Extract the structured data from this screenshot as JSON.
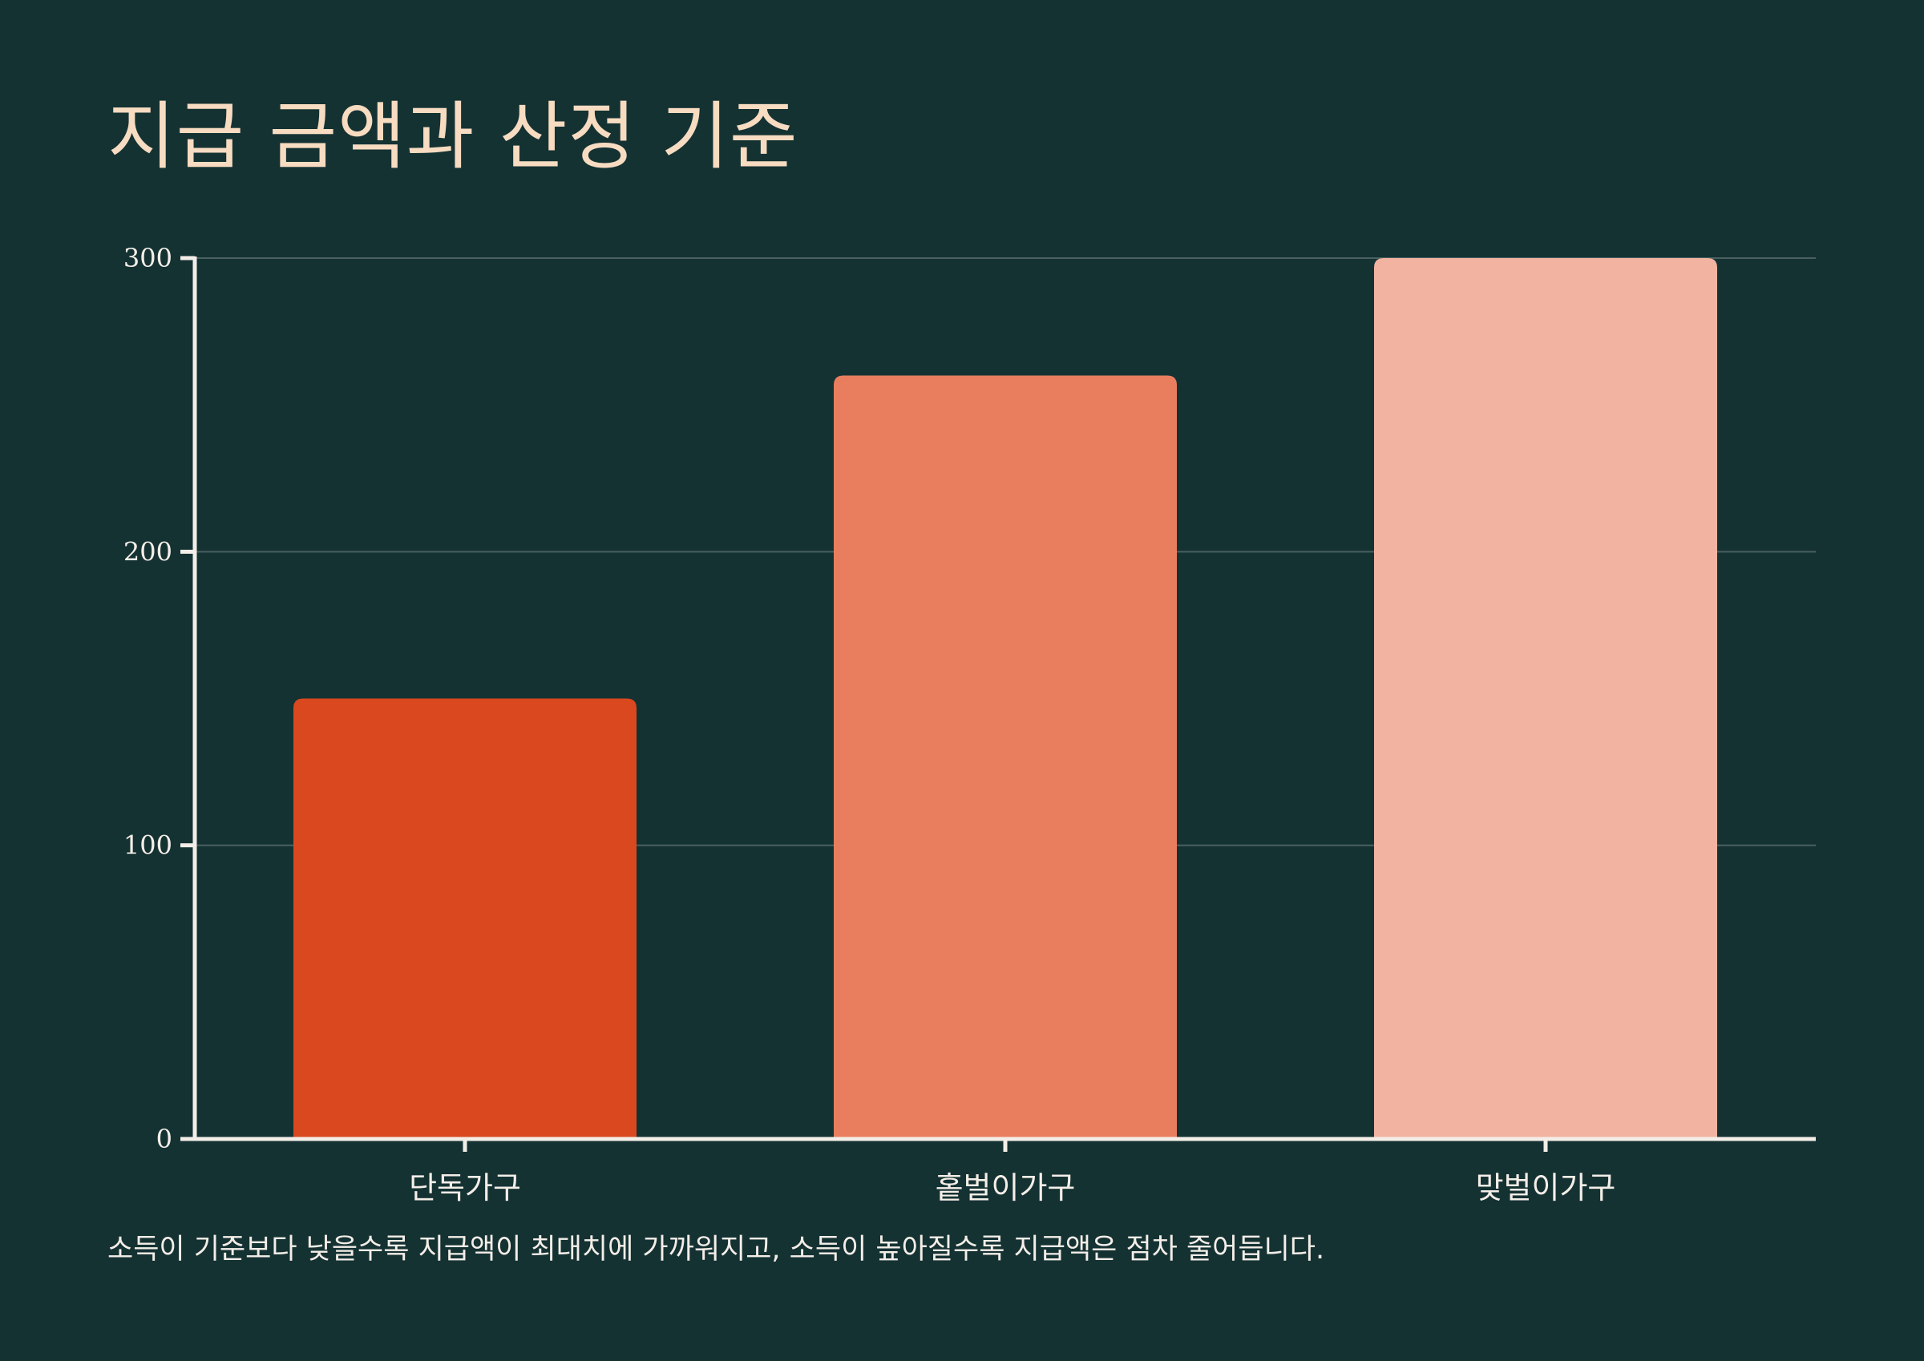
{
  "title": "지급 금액과 산정 기준",
  "caption": "소득이 기준보다 낮을수록 지급액이 최대치에 가까워지고, 소득이 높아질수록 지급액은 점차 줄어듭니다.",
  "colors": {
    "background": "#153233",
    "title": "#f7dcc1",
    "text": "#f4eee8",
    "axis": "#f4eee8",
    "grid": "#4a6060"
  },
  "chart_data": {
    "type": "bar",
    "title": "지급 금액과 산정 기준",
    "xlabel": "",
    "ylabel": "",
    "categories": [
      "단독가구",
      "홑벌이가구",
      "맞벌이가구"
    ],
    "values": [
      150,
      260,
      300
    ],
    "bar_colors": [
      "#d9481e",
      "#e97e5f",
      "#f2b3a1"
    ],
    "ylim": [
      0,
      300
    ],
    "yticks": [
      0,
      100,
      200,
      300
    ],
    "grid": true,
    "legend": "none"
  }
}
